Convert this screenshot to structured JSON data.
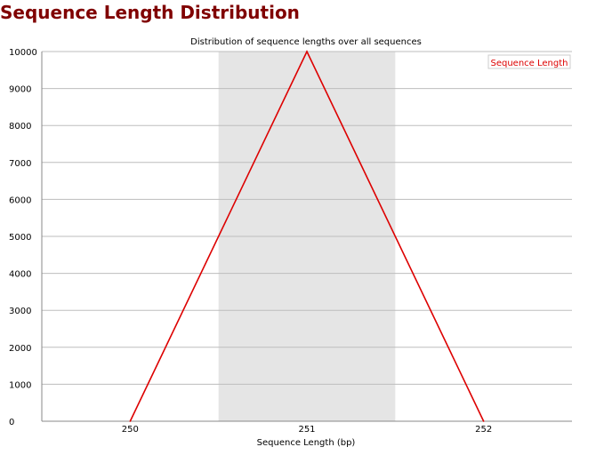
{
  "page": {
    "heading": "Sequence Length Distribution"
  },
  "chart_data": {
    "type": "line",
    "title": "Distribution of sequence lengths over all sequences",
    "xlabel": "Sequence Length (bp)",
    "ylabel": "",
    "categories": [
      "250",
      "251",
      "252"
    ],
    "x": [
      250,
      251,
      252
    ],
    "series": [
      {
        "name": "Sequence Length",
        "values": [
          0,
          10000,
          0
        ],
        "color": "#dd0000"
      }
    ],
    "ylim": [
      0,
      10000
    ],
    "yticks": [
      0,
      1000,
      2000,
      3000,
      4000,
      5000,
      6000,
      7000,
      8000,
      9000,
      10000
    ],
    "grid": true,
    "highlight_band_category": "251",
    "highlight_color": "#e5e5e5",
    "legend": "top-right"
  }
}
